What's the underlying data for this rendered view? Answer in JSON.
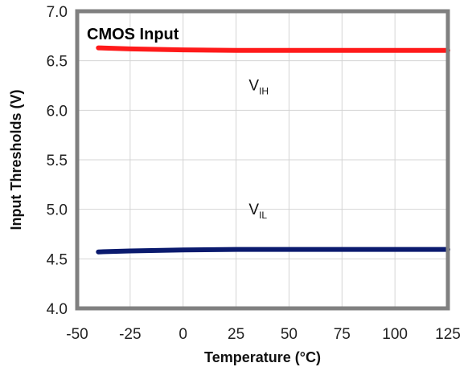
{
  "chart_data": {
    "type": "line",
    "title": "CMOS Input",
    "xlabel": "Temperature (°C)",
    "ylabel": "Input Thresholds (V)",
    "xlim": [
      -50,
      125
    ],
    "ylim": [
      4.0,
      7.0
    ],
    "xticks": [
      "-50",
      "-25",
      "0",
      "25",
      "50",
      "75",
      "100",
      "125"
    ],
    "yticks": [
      "4.0",
      "4.5",
      "5.0",
      "5.5",
      "6.0",
      "6.5",
      "7.0"
    ],
    "grid": true,
    "series": [
      {
        "color": "#ff1a1a",
        "x": [
          -40,
          -25,
          0,
          25,
          50,
          75,
          100,
          125
        ],
        "values": [
          6.63,
          6.62,
          6.61,
          6.605,
          6.605,
          6.605,
          6.605,
          6.605
        ]
      },
      {
        "color": "#0a1a6e",
        "x": [
          -40,
          -25,
          0,
          25,
          50,
          75,
          100,
          125
        ],
        "values": [
          4.57,
          4.58,
          4.59,
          4.595,
          4.595,
          4.595,
          4.595,
          4.595
        ]
      }
    ],
    "annotations": [
      {
        "main": "V",
        "sub": "IH",
        "x": 31,
        "y": 6.2
      },
      {
        "main": "V",
        "sub": "IL",
        "x": 31,
        "y": 4.95
      }
    ]
  }
}
